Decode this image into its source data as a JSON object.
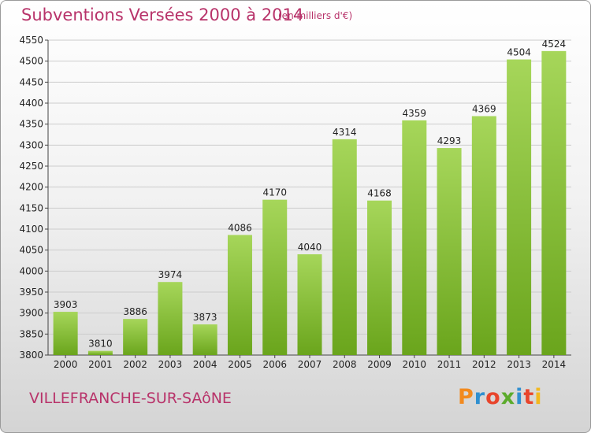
{
  "header": {
    "title": "Subventions Versées 2000 à 2014",
    "subtitle": "(en milliers d'€)"
  },
  "footer": {
    "city": "VILLEFRANCHE-SUR-SAôNE",
    "logo": "Proxiti"
  },
  "colors": {
    "title": "#b8336a",
    "bar_light": "#a6d65a",
    "bar_dark": "#6aa51c",
    "grid": "#cccccc"
  },
  "chart_data": {
    "type": "bar",
    "categories": [
      "2000",
      "2001",
      "2002",
      "2003",
      "2004",
      "2005",
      "2006",
      "2007",
      "2008",
      "2009",
      "2010",
      "2011",
      "2012",
      "2013",
      "2014"
    ],
    "values": [
      3903,
      3810,
      3886,
      3974,
      3873,
      4086,
      4170,
      4040,
      4314,
      4168,
      4359,
      4293,
      4369,
      4504,
      4524
    ],
    "ylim": [
      3800,
      4550
    ],
    "yticks": [
      3800,
      3850,
      3900,
      3950,
      4000,
      4050,
      4100,
      4150,
      4200,
      4250,
      4300,
      4350,
      4400,
      4450,
      4500,
      4550
    ],
    "grid": true,
    "data_labels": true
  }
}
